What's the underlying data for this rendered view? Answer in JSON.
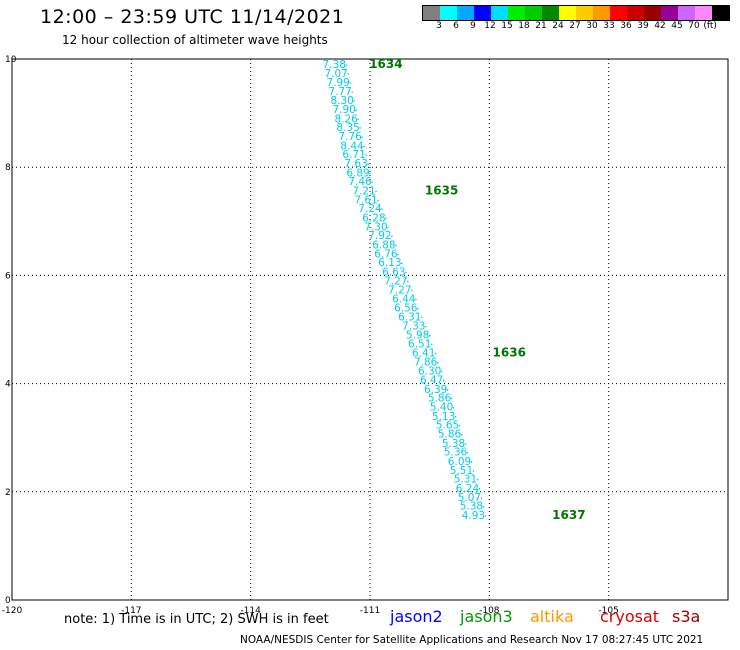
{
  "header": {
    "title": "12:00 – 23:59 UTC 11/14/2021",
    "subtitle": "12 hour collection of altimeter wave heights"
  },
  "colorbar": {
    "colors": [
      "#808080",
      "#00ffff",
      "#00aaff",
      "#0000ff",
      "#00ddff",
      "#00ee00",
      "#00cc00",
      "#008800",
      "#ffff00",
      "#ffcc00",
      "#ff9900",
      "#ff0000",
      "#cc0000",
      "#990000",
      "#990099",
      "#cc66ff",
      "#ff88ff",
      "#000000"
    ],
    "labels": [
      "3",
      "6",
      "9",
      "12",
      "15",
      "18",
      "21",
      "24",
      "27",
      "30",
      "33",
      "36",
      "39",
      "42",
      "45",
      "70"
    ],
    "unit": "(ft)"
  },
  "footer": {
    "note": "note: 1) Time is in UTC; 2) SWH is in feet",
    "credit": "NOAA/NESDIS Center for Satellite Applications and Research   Nov 17 08:27:45 UTC 2021",
    "satellites": [
      {
        "name": "jason2",
        "color": "#0000ff"
      },
      {
        "name": "jason3",
        "color": "#009900"
      },
      {
        "name": "altika",
        "color": "#ff9900"
      },
      {
        "name": "cryosat",
        "color": "#dd0000"
      },
      {
        "name": "s3a",
        "color": "#990000"
      }
    ]
  },
  "chart_data": {
    "type": "scatter",
    "xlim": [
      -120,
      -102
    ],
    "ylim": [
      0,
      10
    ],
    "x_tick_labels": [
      "-120",
      "-117",
      "-114",
      "-111",
      "-108",
      "-105"
    ],
    "y_tick_labels": [
      "0",
      "2",
      "4",
      "6",
      "8",
      "10"
    ],
    "grid": true,
    "point_color": "#00ccee",
    "time_label_color": "#007700",
    "series": [
      {
        "satellite": "jason3",
        "points": [
          {
            "x": -111.9,
            "y": 9.83,
            "v": "7.38"
          },
          {
            "x": -111.85,
            "y": 9.67,
            "v": "7.07"
          },
          {
            "x": -111.8,
            "y": 9.5,
            "v": "7.99"
          },
          {
            "x": -111.75,
            "y": 9.33,
            "v": "7.77"
          },
          {
            "x": -111.7,
            "y": 9.17,
            "v": "8.30"
          },
          {
            "x": -111.65,
            "y": 9.0,
            "v": "7.90"
          },
          {
            "x": -111.6,
            "y": 8.83,
            "v": "8.26"
          },
          {
            "x": -111.55,
            "y": 8.67,
            "v": "8.35"
          },
          {
            "x": -111.5,
            "y": 8.5,
            "v": "7.76"
          },
          {
            "x": -111.45,
            "y": 8.33,
            "v": "8.44"
          },
          {
            "x": -111.4,
            "y": 8.17,
            "v": "6.71"
          },
          {
            "x": -111.35,
            "y": 8.0,
            "v": "7.63"
          },
          {
            "x": -111.3,
            "y": 7.83,
            "v": "6.89"
          },
          {
            "x": -111.25,
            "y": 7.67,
            "v": "7.46"
          },
          {
            "x": -111.15,
            "y": 7.5,
            "v": "7.21"
          },
          {
            "x": -111.1,
            "y": 7.33,
            "v": "7.61"
          },
          {
            "x": -111.0,
            "y": 7.17,
            "v": "7.24"
          },
          {
            "x": -110.9,
            "y": 7.0,
            "v": "6.28"
          },
          {
            "x": -110.85,
            "y": 6.83,
            "v": "7.30"
          },
          {
            "x": -110.75,
            "y": 6.67,
            "v": "7.92"
          },
          {
            "x": -110.65,
            "y": 6.5,
            "v": "6.88"
          },
          {
            "x": -110.6,
            "y": 6.33,
            "v": "6.76"
          },
          {
            "x": -110.5,
            "y": 6.17,
            "v": "6.13"
          },
          {
            "x": -110.4,
            "y": 6.0,
            "v": "6.63"
          },
          {
            "x": -110.35,
            "y": 5.83,
            "v": "7.27"
          },
          {
            "x": -110.25,
            "y": 5.67,
            "v": "7.27"
          },
          {
            "x": -110.15,
            "y": 5.5,
            "v": "6.44"
          },
          {
            "x": -110.1,
            "y": 5.33,
            "v": "6.56"
          },
          {
            "x": -110.0,
            "y": 5.17,
            "v": "6.31"
          },
          {
            "x": -109.9,
            "y": 5.0,
            "v": "7.33"
          },
          {
            "x": -109.8,
            "y": 4.83,
            "v": "5.98"
          },
          {
            "x": -109.75,
            "y": 4.67,
            "v": "6.51"
          },
          {
            "x": -109.65,
            "y": 4.5,
            "v": "6.41"
          },
          {
            "x": -109.6,
            "y": 4.33,
            "v": "7.86"
          },
          {
            "x": -109.5,
            "y": 4.17,
            "v": "6.30"
          },
          {
            "x": -109.45,
            "y": 4.0,
            "v": "6.47"
          },
          {
            "x": -109.35,
            "y": 3.83,
            "v": "6.39"
          },
          {
            "x": -109.25,
            "y": 3.67,
            "v": "5.86"
          },
          {
            "x": -109.2,
            "y": 3.5,
            "v": "5.40"
          },
          {
            "x": -109.15,
            "y": 3.33,
            "v": "5.13"
          },
          {
            "x": -109.05,
            "y": 3.17,
            "v": "5.65"
          },
          {
            "x": -109.0,
            "y": 3.0,
            "v": "5.86"
          },
          {
            "x": -108.9,
            "y": 2.83,
            "v": "5.38"
          },
          {
            "x": -108.85,
            "y": 2.67,
            "v": "5.36"
          },
          {
            "x": -108.75,
            "y": 2.5,
            "v": "6.09"
          },
          {
            "x": -108.7,
            "y": 2.33,
            "v": "5.51"
          },
          {
            "x": -108.6,
            "y": 2.17,
            "v": "5.31"
          },
          {
            "x": -108.55,
            "y": 2.0,
            "v": "6.24"
          },
          {
            "x": -108.5,
            "y": 1.83,
            "v": "5.07"
          },
          {
            "x": -108.45,
            "y": 1.67,
            "v": "5.38"
          },
          {
            "x": -108.4,
            "y": 1.5,
            "v": "4.93"
          }
        ],
        "time_labels": [
          {
            "x": -110.6,
            "y": 9.83,
            "text": "1634"
          },
          {
            "x": -109.2,
            "y": 7.5,
            "text": "1635"
          },
          {
            "x": -107.5,
            "y": 4.5,
            "text": "1636"
          },
          {
            "x": -106.0,
            "y": 1.5,
            "text": "1637"
          }
        ]
      }
    ]
  }
}
